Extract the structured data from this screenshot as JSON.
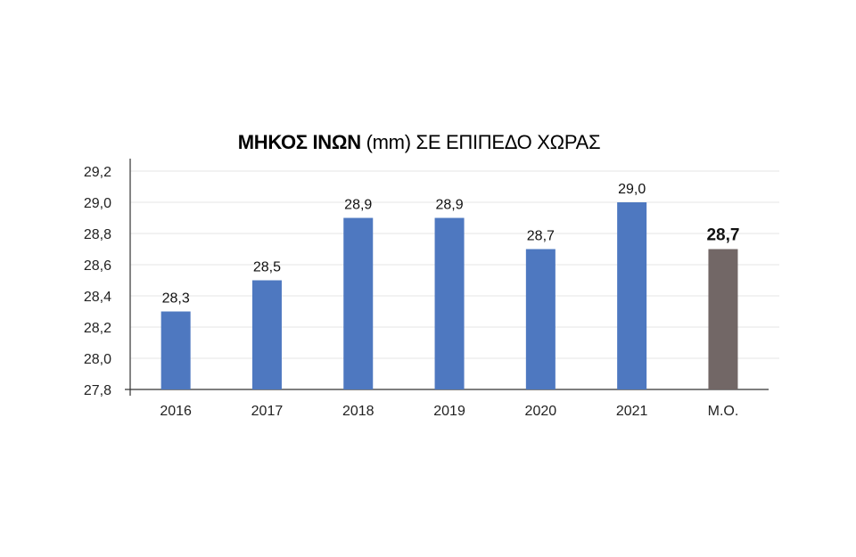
{
  "chart_data": {
    "type": "bar",
    "title_bold": "ΜΗΚΟΣ ΙΝΩΝ",
    "title_rest": " (mm) ΣΕ ΕΠΙΠΕΔΟ ΧΩΡΑΣ",
    "categories": [
      "2016",
      "2017",
      "2018",
      "2019",
      "2020",
      "2021",
      "Μ.Ο."
    ],
    "values": [
      28.3,
      28.5,
      28.9,
      28.9,
      28.7,
      29.0,
      28.7
    ],
    "value_labels": [
      "28,3",
      "28,5",
      "28,9",
      "28,9",
      "28,7",
      "29,0",
      "28,7"
    ],
    "highlight_index": 6,
    "ylim": [
      27.8,
      29.2
    ],
    "yticks": [
      27.8,
      28.0,
      28.2,
      28.4,
      28.6,
      28.8,
      29.0,
      29.2
    ],
    "ytick_labels": [
      "27,8",
      "28,0",
      "28,2",
      "28,4",
      "28,6",
      "28,8",
      "29,0",
      "29,2"
    ],
    "grid": true,
    "colors": {
      "bar": "#4e78c0",
      "highlight": "#726766",
      "grid": "#e6e6e6",
      "axis": "#333333"
    }
  }
}
